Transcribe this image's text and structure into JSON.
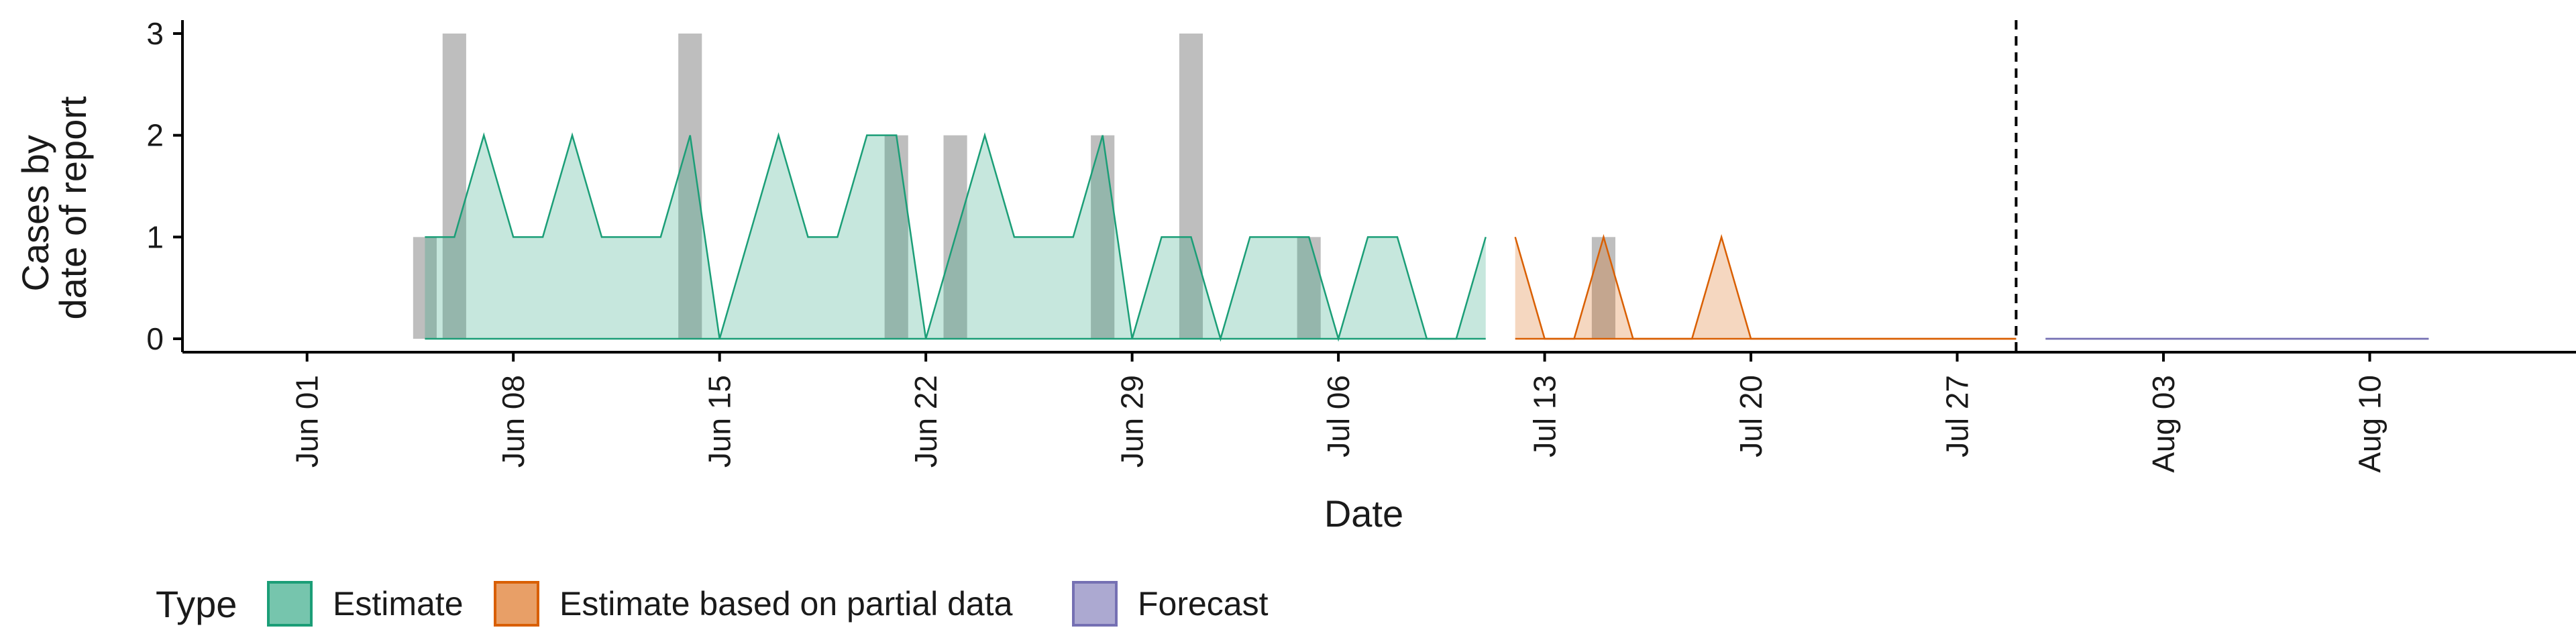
{
  "chart_data": {
    "type": "bar+area",
    "xlabel": "Date",
    "ylabel_lines": [
      "Cases by",
      "date of report"
    ],
    "ylim": [
      0,
      3
    ],
    "yticks": [
      0,
      1,
      2,
      3
    ],
    "xlim": [
      "2025-05-28",
      "2025-08-17"
    ],
    "xticks": [
      {
        "date": "2025-06-01",
        "label": "Jun 01"
      },
      {
        "date": "2025-06-08",
        "label": "Jun 08"
      },
      {
        "date": "2025-06-15",
        "label": "Jun 15"
      },
      {
        "date": "2025-06-22",
        "label": "Jun 22"
      },
      {
        "date": "2025-06-29",
        "label": "Jun 29"
      },
      {
        "date": "2025-07-06",
        "label": "Jul 06"
      },
      {
        "date": "2025-07-13",
        "label": "Jul 13"
      },
      {
        "date": "2025-07-20",
        "label": "Jul 20"
      },
      {
        "date": "2025-07-27",
        "label": "Jul 27"
      },
      {
        "date": "2025-08-03",
        "label": "Aug 03"
      },
      {
        "date": "2025-08-10",
        "label": "Aug 10"
      }
    ],
    "reported_cases": {
      "color": "#b3b3b3",
      "points": [
        {
          "date": "2025-06-05",
          "value": 1
        },
        {
          "date": "2025-06-06",
          "value": 3
        },
        {
          "date": "2025-06-14",
          "value": 3
        },
        {
          "date": "2025-06-21",
          "value": 2
        },
        {
          "date": "2025-06-23",
          "value": 2
        },
        {
          "date": "2025-06-28",
          "value": 2
        },
        {
          "date": "2025-07-01",
          "value": 3
        },
        {
          "date": "2025-07-05",
          "value": 1
        },
        {
          "date": "2025-07-15",
          "value": 1
        }
      ]
    },
    "series": [
      {
        "name": "Estimate",
        "color": "#1b9e77",
        "fill": "#1b9e77",
        "points": [
          {
            "date": "2025-06-05",
            "value": 1
          },
          {
            "date": "2025-06-06",
            "value": 1
          },
          {
            "date": "2025-06-07",
            "value": 2
          },
          {
            "date": "2025-06-08",
            "value": 1
          },
          {
            "date": "2025-06-09",
            "value": 1
          },
          {
            "date": "2025-06-10",
            "value": 2
          },
          {
            "date": "2025-06-11",
            "value": 1
          },
          {
            "date": "2025-06-12",
            "value": 1
          },
          {
            "date": "2025-06-13",
            "value": 1
          },
          {
            "date": "2025-06-14",
            "value": 2
          },
          {
            "date": "2025-06-15",
            "value": 0
          },
          {
            "date": "2025-06-16",
            "value": 1
          },
          {
            "date": "2025-06-17",
            "value": 2
          },
          {
            "date": "2025-06-18",
            "value": 1
          },
          {
            "date": "2025-06-19",
            "value": 1
          },
          {
            "date": "2025-06-20",
            "value": 2
          },
          {
            "date": "2025-06-21",
            "value": 2
          },
          {
            "date": "2025-06-22",
            "value": 0
          },
          {
            "date": "2025-06-23",
            "value": 1
          },
          {
            "date": "2025-06-24",
            "value": 2
          },
          {
            "date": "2025-06-25",
            "value": 1
          },
          {
            "date": "2025-06-26",
            "value": 1
          },
          {
            "date": "2025-06-27",
            "value": 1
          },
          {
            "date": "2025-06-28",
            "value": 2
          },
          {
            "date": "2025-06-29",
            "value": 0
          },
          {
            "date": "2025-06-30",
            "value": 1
          },
          {
            "date": "2025-07-01",
            "value": 1
          },
          {
            "date": "2025-07-02",
            "value": 0
          },
          {
            "date": "2025-07-03",
            "value": 1
          },
          {
            "date": "2025-07-04",
            "value": 1
          },
          {
            "date": "2025-07-05",
            "value": 1
          },
          {
            "date": "2025-07-06",
            "value": 0
          },
          {
            "date": "2025-07-07",
            "value": 1
          },
          {
            "date": "2025-07-08",
            "value": 1
          },
          {
            "date": "2025-07-09",
            "value": 0
          },
          {
            "date": "2025-07-10",
            "value": 0
          },
          {
            "date": "2025-07-11",
            "value": 1
          }
        ]
      },
      {
        "name": "Estimate based on partial data",
        "color": "#d95f02",
        "fill": "#d95f02",
        "points": [
          {
            "date": "2025-07-12",
            "value": 1
          },
          {
            "date": "2025-07-13",
            "value": 0
          },
          {
            "date": "2025-07-14",
            "value": 0
          },
          {
            "date": "2025-07-15",
            "value": 1
          },
          {
            "date": "2025-07-16",
            "value": 0
          },
          {
            "date": "2025-07-17",
            "value": 0
          },
          {
            "date": "2025-07-18",
            "value": 0
          },
          {
            "date": "2025-07-19",
            "value": 1
          },
          {
            "date": "2025-07-20",
            "value": 0
          },
          {
            "date": "2025-07-21",
            "value": 0
          },
          {
            "date": "2025-07-22",
            "value": 0
          },
          {
            "date": "2025-07-23",
            "value": 0
          },
          {
            "date": "2025-07-24",
            "value": 0
          },
          {
            "date": "2025-07-25",
            "value": 0
          },
          {
            "date": "2025-07-26",
            "value": 0
          },
          {
            "date": "2025-07-27",
            "value": 0
          },
          {
            "date": "2025-07-28",
            "value": 0
          },
          {
            "date": "2025-07-29",
            "value": 0
          }
        ]
      },
      {
        "name": "Forecast",
        "color": "#7570b3",
        "fill": "#7570b3",
        "points": [
          {
            "date": "2025-07-30",
            "value": 0
          },
          {
            "date": "2025-07-31",
            "value": 0
          },
          {
            "date": "2025-08-01",
            "value": 0
          },
          {
            "date": "2025-08-02",
            "value": 0
          },
          {
            "date": "2025-08-03",
            "value": 0
          },
          {
            "date": "2025-08-04",
            "value": 0
          },
          {
            "date": "2025-08-05",
            "value": 0
          },
          {
            "date": "2025-08-06",
            "value": 0
          },
          {
            "date": "2025-08-07",
            "value": 0
          },
          {
            "date": "2025-08-08",
            "value": 0
          },
          {
            "date": "2025-08-09",
            "value": 0
          },
          {
            "date": "2025-08-10",
            "value": 0
          },
          {
            "date": "2025-08-11",
            "value": 0
          },
          {
            "date": "2025-08-12",
            "value": 0
          }
        ]
      }
    ],
    "forecast_start_marker": {
      "date": "2025-07-29",
      "style": "dashed"
    },
    "legend": {
      "title": "Type",
      "placement": "bottom-left",
      "items": [
        "Estimate",
        "Estimate based on partial data",
        "Forecast"
      ]
    },
    "grid": false
  }
}
